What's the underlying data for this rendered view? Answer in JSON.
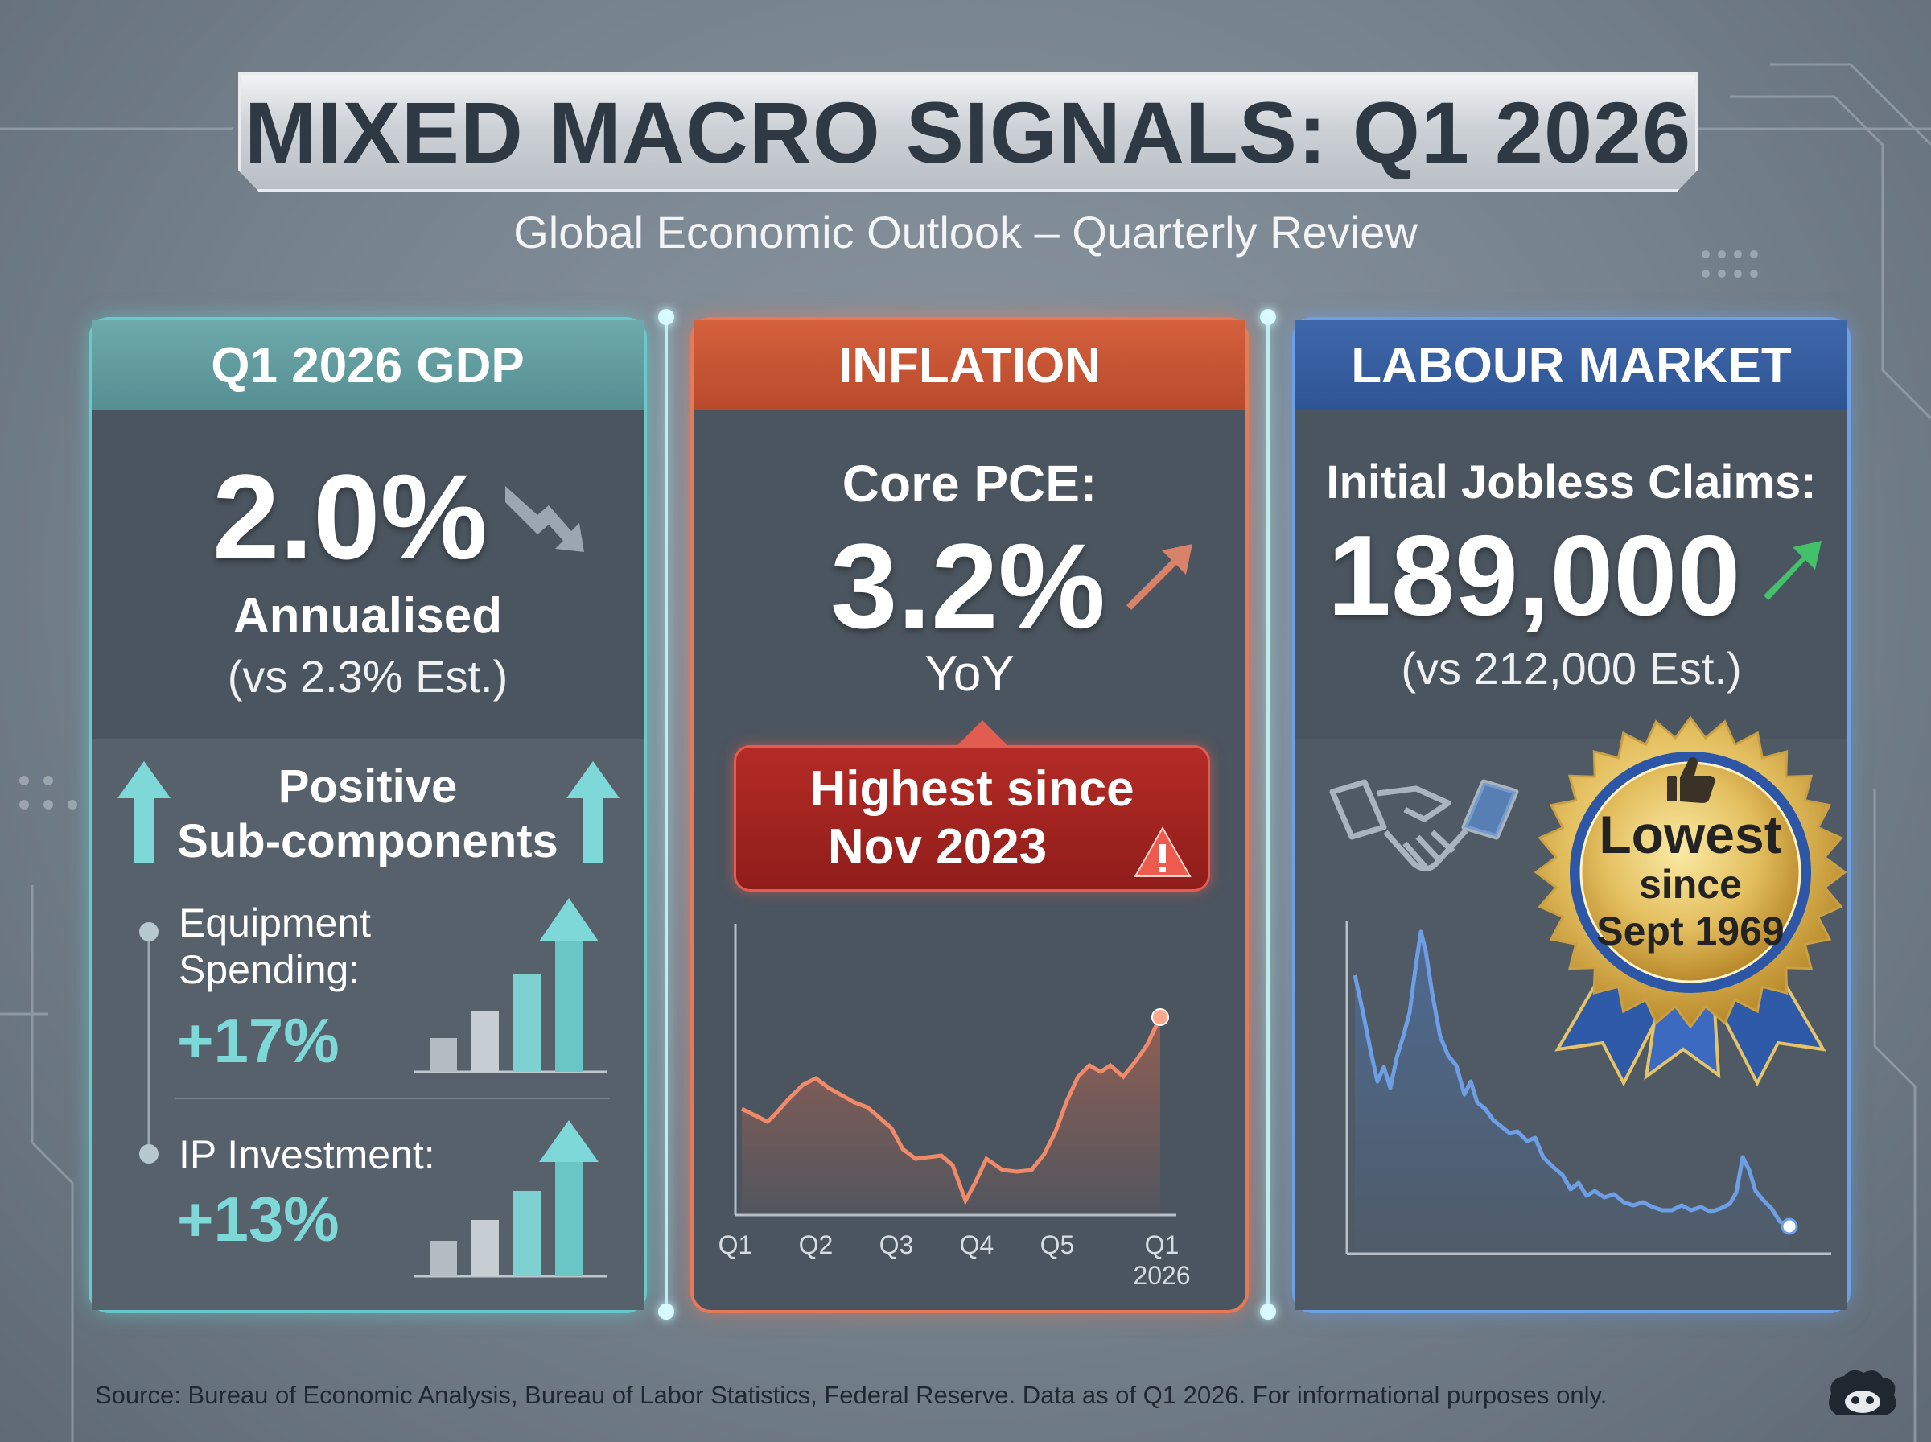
{
  "title": "MIXED MACRO SIGNALS: Q1 2026",
  "subtitle": "Global Economic Outlook – Quarterly Review",
  "gdp": {
    "header": "Q1 2026 GDP",
    "value": "2.0%",
    "label": "Annualised",
    "estimate": "(vs 2.3% Est.)",
    "sub_title_1": "Positive",
    "sub_title_2": "Sub-components",
    "items": [
      {
        "label_1": "Equipment",
        "label_2": "Spending:",
        "value": "+17%"
      },
      {
        "label_1": "IP Investment:",
        "label_2": "",
        "value": "+13%"
      }
    ],
    "colors": {
      "accent": "#67c9c9",
      "value_text": "#7fd8d8"
    }
  },
  "inflation": {
    "header": "INFLATION",
    "label": "Core PCE:",
    "value": "3.2%",
    "unit": "YoY",
    "callout_1": "Highest since",
    "callout_2": "Nov 2023",
    "chart": {
      "x_ticks": [
        "Q1",
        "Q2",
        "Q3",
        "Q4",
        "Q5",
        "Q1"
      ],
      "x_ticks_sub": "2026",
      "line_color": "#f08a68"
    },
    "colors": {
      "accent": "#e57a5a"
    }
  },
  "labour": {
    "header": "LABOUR MARKET",
    "label": "Initial Jobless Claims:",
    "value": "189,000",
    "estimate": "(vs 212,000 Est.)",
    "badge_1": "Lowest",
    "badge_2": "since",
    "badge_3": "Sept 1969",
    "chart": {
      "line_color": "#6d9ee6"
    },
    "colors": {
      "accent": "#6ea0e4"
    }
  },
  "icons": [
    "down-arrow-icon",
    "up-arrow-icon",
    "handshake-icon",
    "thumbs-up-icon",
    "warning-icon"
  ],
  "source": "Source: Bureau of Economic Analysis, Bureau of Labor Statistics, Federal Reserve. Data as of Q1 2026. For informational purposes only."
}
